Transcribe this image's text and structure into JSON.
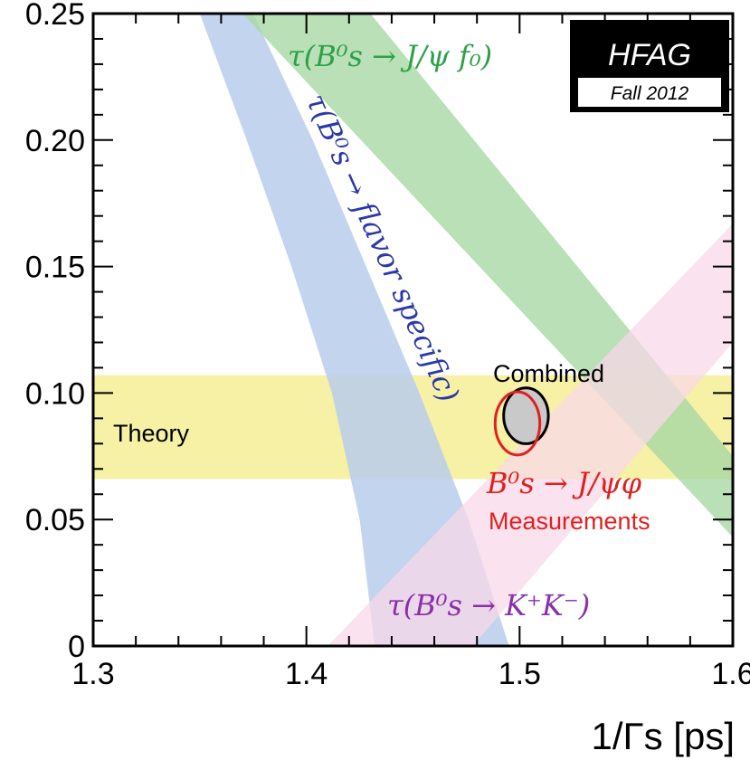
{
  "chart_data": {
    "type": "area",
    "title": "",
    "xlabel": "1/Γs  [ps]",
    "ylabel": "",
    "xlim": [
      1.3,
      1.6
    ],
    "ylim": [
      0,
      0.25
    ],
    "x_ticks": [
      "1.3",
      "1.4",
      "1.5",
      "1.6"
    ],
    "y_ticks": [
      "0",
      "0.05",
      "0.10",
      "0.15",
      "0.20",
      "0.25"
    ],
    "grid": false,
    "colors": {
      "theory": "#f5f0a0",
      "flavor_specific": "#b8cdeb",
      "jpsi_f0": "#a8d8a4",
      "kk": "#f8d8e8",
      "combined": "#000000",
      "measurements": "#e02020"
    },
    "bands": [
      {
        "name": "Theory",
        "label": "Theory",
        "polygon": [
          [
            1.3,
            0.107
          ],
          [
            1.6,
            0.107
          ],
          [
            1.6,
            0.066
          ],
          [
            1.3,
            0.066
          ]
        ]
      },
      {
        "name": "τ(B⁰s → flavor specific)",
        "label": "τ(B⁰s → flavor specific)",
        "polygon": [
          [
            1.35,
            0.25
          ],
          [
            1.375,
            0.25
          ],
          [
            1.403,
            0.2
          ],
          [
            1.428,
            0.15
          ],
          [
            1.453,
            0.1
          ],
          [
            1.476,
            0.05
          ],
          [
            1.495,
            0.0
          ],
          [
            1.432,
            0.0
          ],
          [
            1.425,
            0.05
          ],
          [
            1.412,
            0.1
          ],
          [
            1.393,
            0.15
          ],
          [
            1.372,
            0.2
          ]
        ]
      },
      {
        "name": "τ(B⁰s → J/ψ f0)",
        "label": "τ(B⁰s → J/ψ f₀)",
        "polygon": [
          [
            1.37,
            0.25
          ],
          [
            1.43,
            0.25
          ],
          [
            1.6,
            0.075
          ],
          [
            1.6,
            0.043
          ]
        ]
      },
      {
        "name": "τ(B⁰s → K⁺K⁻)",
        "label": "τ(B⁰s → K⁺K⁻)",
        "polygon": [
          [
            1.41,
            0.0
          ],
          [
            1.6,
            0.167
          ],
          [
            1.6,
            0.12
          ],
          [
            1.478,
            0.0
          ]
        ]
      }
    ],
    "contours": [
      {
        "name": "Combined",
        "label": "Combined",
        "center": [
          1.503,
          0.091
        ],
        "half_width": [
          0.0105,
          0.011
        ],
        "fill": "#c9c9c9",
        "stroke": "#000000"
      },
      {
        "name": "B⁰s → J/ψφ Measurements",
        "label_math": "B⁰s → J/ψφ",
        "label_text": "Measurements",
        "center": [
          1.499,
          0.088
        ],
        "half_width": [
          0.0105,
          0.0125
        ],
        "fill": "none",
        "stroke": "#e02020"
      }
    ],
    "logo": {
      "main": "HFAG",
      "sub": "Fall 2012"
    }
  }
}
